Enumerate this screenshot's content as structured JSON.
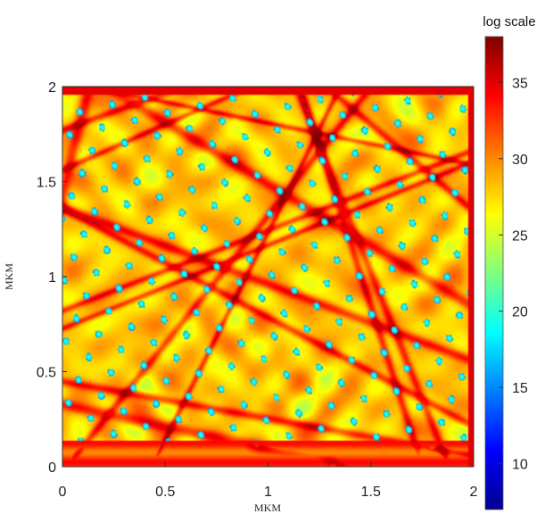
{
  "chart_data": {
    "type": "heatmap",
    "title": "",
    "xlabel": "MKM",
    "ylabel": "MKM",
    "xlim": [
      0,
      2
    ],
    "ylim": [
      0,
      2
    ],
    "x_ticks": [
      "0",
      "0.5",
      "1",
      "1.5",
      "2"
    ],
    "y_ticks": [
      "0",
      "0.5",
      "1",
      "1.5",
      "2"
    ],
    "colorbar": {
      "title": "log scale",
      "range": [
        7,
        38
      ],
      "ticks": [
        "10",
        "15",
        "20",
        "25",
        "30",
        "35"
      ],
      "colormap": "jet"
    },
    "field": {
      "dominant_value": 28,
      "ridge_value": 33,
      "hotspot_value": 37,
      "low_value": 15
    },
    "grid": false
  }
}
